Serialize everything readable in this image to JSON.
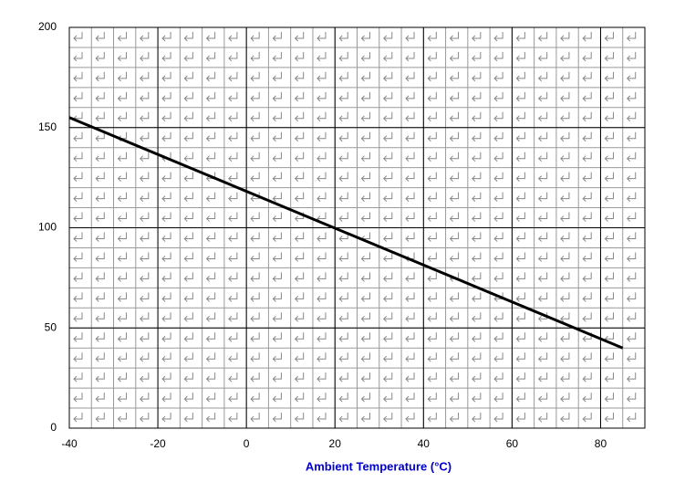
{
  "chart_data": {
    "type": "line",
    "x_label": "Ambient Temperature (°C)",
    "series": [
      {
        "color": "#000000",
        "x": [
          -40,
          85
        ],
        "values": [
          155,
          40
        ]
      }
    ],
    "xlim": [
      -40,
      90
    ],
    "xticks": [
      -40,
      -20,
      0,
      20,
      40,
      60,
      80
    ],
    "ylim": [
      0,
      200
    ],
    "yticks": [
      0,
      50,
      100,
      150,
      200
    ],
    "grid": true,
    "minor_grid": {
      "x": 5,
      "y": 10
    }
  }
}
